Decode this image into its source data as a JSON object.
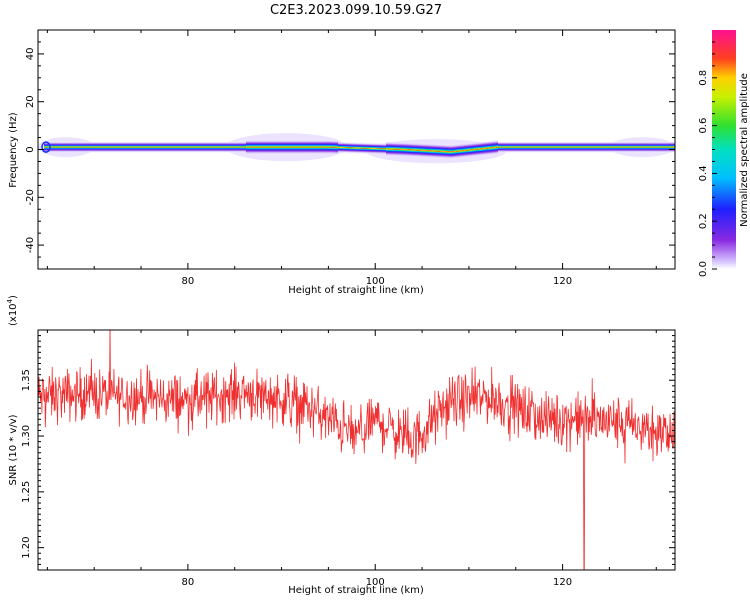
{
  "title": "C2E3.2023.099.10.59.G27",
  "chart_data": [
    {
      "type": "heatmap",
      "xlabel": "Height of straight line (km)",
      "ylabel": "Frequency (Hz)",
      "xlim": [
        64,
        132
      ],
      "ylim": [
        -50,
        50
      ],
      "xticks": [
        "80",
        "100",
        "120"
      ],
      "yticks": [
        "40",
        "20",
        "0",
        "-20",
        "-40"
      ],
      "colorbar": {
        "label": "Normalized spectral amplitude",
        "range": [
          0.0,
          1.0
        ],
        "ticks": [
          "0.0",
          "0.2",
          "0.4",
          "0.6",
          "0.8"
        ],
        "colormap": "rainbow (white-purple-blue-cyan-green-yellow-red-pink)"
      },
      "band_center_hz": [
        {
          "x": 64,
          "f": 1
        },
        {
          "x": 88,
          "f": 1
        },
        {
          "x": 95,
          "f": 1
        },
        {
          "x": 103,
          "f": 0
        },
        {
          "x": 108,
          "f": -1
        },
        {
          "x": 113,
          "f": 1
        },
        {
          "x": 132,
          "f": 1
        }
      ]
    },
    {
      "type": "line",
      "xlabel": "Height of straight line (km)",
      "ylabel": "SNR (10 * v/v)",
      "scale_label": "(x10",
      "scale_exp": "4",
      "scale_close": ")",
      "xlim": [
        64,
        132
      ],
      "ylim": [
        1.18,
        1.395
      ],
      "xticks": [
        "80",
        "100",
        "120"
      ],
      "yticks": [
        "1.35",
        "1.30",
        "1.25",
        "1.20"
      ],
      "line_color": "#f03030",
      "trend": [
        {
          "x": 64,
          "y": 1.335
        },
        {
          "x": 70,
          "y": 1.338
        },
        {
          "x": 80,
          "y": 1.332
        },
        {
          "x": 86,
          "y": 1.34
        },
        {
          "x": 92,
          "y": 1.33
        },
        {
          "x": 98,
          "y": 1.3
        },
        {
          "x": 100,
          "y": 1.315
        },
        {
          "x": 104,
          "y": 1.295
        },
        {
          "x": 108,
          "y": 1.33
        },
        {
          "x": 112,
          "y": 1.335
        },
        {
          "x": 118,
          "y": 1.315
        },
        {
          "x": 122,
          "y": 1.315
        },
        {
          "x": 126,
          "y": 1.312
        },
        {
          "x": 132,
          "y": 1.3
        }
      ],
      "noise_amplitude": 0.018,
      "dropout": {
        "x": 122.3,
        "y": 1.18
      }
    }
  ]
}
